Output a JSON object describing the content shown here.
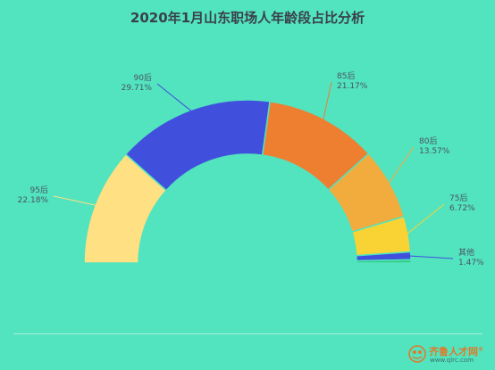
{
  "chart_data": {
    "type": "pie",
    "style": "semi-donut (half ring, clockwise from left)",
    "title": "2020年1月山东职场人年龄段占比分析",
    "slices": [
      {
        "label": "95后",
        "value": 22.18,
        "percent_text": "22.18%",
        "color": "#ffe082"
      },
      {
        "label": "90后",
        "value": 29.71,
        "percent_text": "29.71%",
        "color": "#4150dc"
      },
      {
        "label": "85后",
        "value": 21.17,
        "percent_text": "21.17%",
        "color": "#ee7f31"
      },
      {
        "label": "80后",
        "value": 13.57,
        "percent_text": "13.57%",
        "color": "#f2ac3e"
      },
      {
        "label": "75后",
        "value": 6.72,
        "percent_text": "6.72%",
        "color": "#f9d334"
      },
      {
        "label": "其他",
        "value": 1.47,
        "percent_text": "1.47%",
        "color": "#4150dc"
      },
      {
        "label": "",
        "value": 0.6,
        "percent_text": "",
        "color": "#33cf80"
      }
    ],
    "legend": "none",
    "background": "#52e3bf"
  },
  "watermark": {
    "name": "齐鲁人才网",
    "registered": "®",
    "url": "www.qlrc.com"
  }
}
